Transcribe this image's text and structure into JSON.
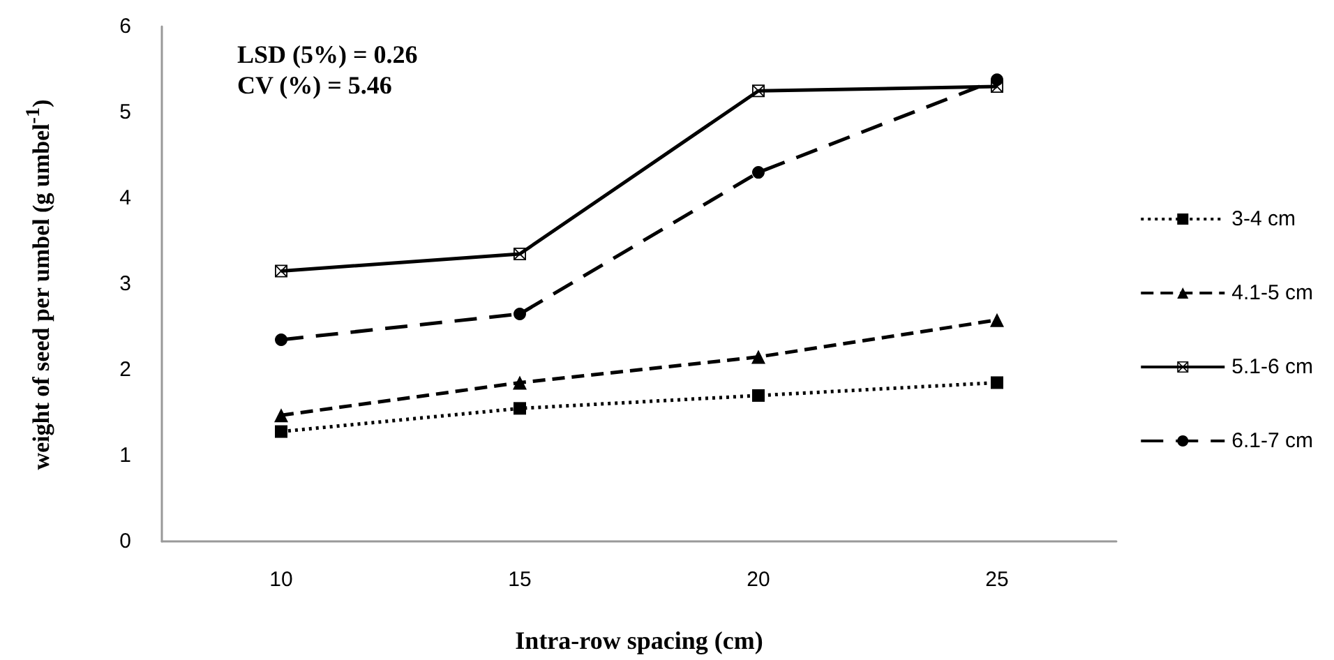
{
  "chart_data": {
    "type": "line",
    "xlabel": "Intra-row spacing (cm)",
    "ylabel": "weight of seed per umbel (g umbel$^{-1}$)",
    "annotations": [
      "LSD (5%) = 0.26",
      "CV (%) = 5.46"
    ],
    "categories": [
      "10",
      "15",
      "20",
      "25"
    ],
    "series": [
      {
        "name": "3-4 cm",
        "color": "#000000",
        "marker": "square",
        "line_style": "dotted",
        "values": [
          1.28,
          1.55,
          1.7,
          1.85
        ]
      },
      {
        "name": "4.1-5 cm",
        "color": "#000000",
        "marker": "triangle",
        "line_style": "dashed",
        "values": [
          1.47,
          1.85,
          2.15,
          2.58
        ]
      },
      {
        "name": "5.1-6 cm",
        "color": "#000000",
        "marker": "cross",
        "line_style": "solid",
        "values": [
          3.15,
          3.35,
          5.25,
          5.3
        ]
      },
      {
        "name": "6.1-7 cm",
        "color": "#000000",
        "marker": "circle",
        "line_style": "dashed",
        "values": [
          2.35,
          2.65,
          4.3,
          5.38
        ]
      }
    ],
    "ylim": [
      0,
      6
    ],
    "yticks": [
      0,
      1,
      2,
      3,
      4,
      5,
      6
    ],
    "grid": false,
    "legend": "right"
  }
}
